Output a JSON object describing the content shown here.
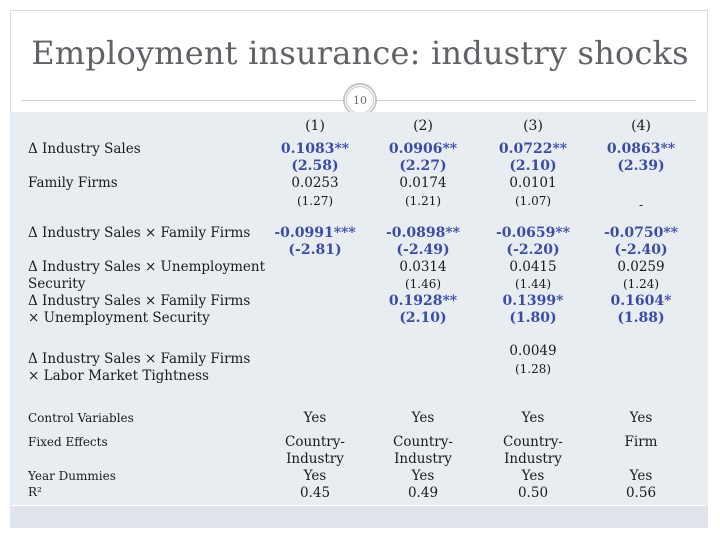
{
  "title": "Employment insurance: industry shocks",
  "page_number": "10",
  "columns": [
    "(1)",
    "(2)",
    "(3)",
    "(4)"
  ],
  "labels": {
    "industry_sales": "Δ Industry Sales",
    "family_firms": "Family Firms",
    "sales_x_family": "Δ Industry Sales × Family Firms",
    "sales_x_unemp_1": "Δ Industry Sales × Unemployment",
    "sales_x_unemp_2": "Security",
    "sales_x_family_x_unemp_1": "Δ Industry Sales × Family Firms",
    "sales_x_family_x_unemp_2": "× Unemployment Security",
    "sales_x_family_x_labor_1": "Δ Industry Sales × Family Firms",
    "sales_x_family_x_labor_2": "× Labor Market Tightness",
    "control_variables": "Control Variables",
    "fixed_effects": "Fixed Effects",
    "year_dummies": "Year Dummies",
    "r2": "R²"
  },
  "rows": {
    "industry_sales": {
      "coef": [
        "0.1083**",
        "0.0906**",
        "0.0722**",
        "0.0863**"
      ],
      "t": [
        "(2.58)",
        "(2.27)",
        "(2.10)",
        "(2.39)"
      ]
    },
    "family_firms": {
      "coef": [
        "0.0253",
        "0.0174",
        "0.0101",
        ""
      ],
      "t": [
        "(1.27)",
        "(1.21)",
        "(1.07)",
        "-"
      ]
    },
    "sales_x_family": {
      "coef": [
        "-0.0991***",
        "-0.0898**",
        "-0.0659**",
        "-0.0750**"
      ],
      "t": [
        "(-2.81)",
        "(-2.49)",
        "(-2.20)",
        "(-2.40)"
      ]
    },
    "sales_x_unemp": {
      "coef": [
        "",
        "0.0314",
        "0.0415",
        "0.0259"
      ],
      "t": [
        "",
        "(1.46)",
        "(1.44)",
        "(1.24)"
      ]
    },
    "sales_x_family_x_unemp": {
      "coef": [
        "",
        "0.1928**",
        "0.1399*",
        "0.1604*"
      ],
      "t": [
        "",
        "(2.10)",
        "(1.80)",
        "(1.88)"
      ]
    },
    "sales_x_family_x_labor": {
      "coef": [
        "",
        "",
        "0.0049",
        ""
      ],
      "t": [
        "",
        "",
        "(1.28)",
        ""
      ]
    },
    "control_variables": [
      "Yes",
      "Yes",
      "Yes",
      "Yes"
    ],
    "fixed_effects_line1": [
      "Country-",
      "Country-",
      "Country-",
      "Firm"
    ],
    "fixed_effects_line2": [
      "Industry",
      "Industry",
      "Industry",
      ""
    ],
    "year_dummies": [
      "Yes",
      "Yes",
      "Yes",
      "Yes"
    ],
    "r2": [
      "0.45",
      "0.49",
      "0.50",
      "0.56"
    ]
  }
}
